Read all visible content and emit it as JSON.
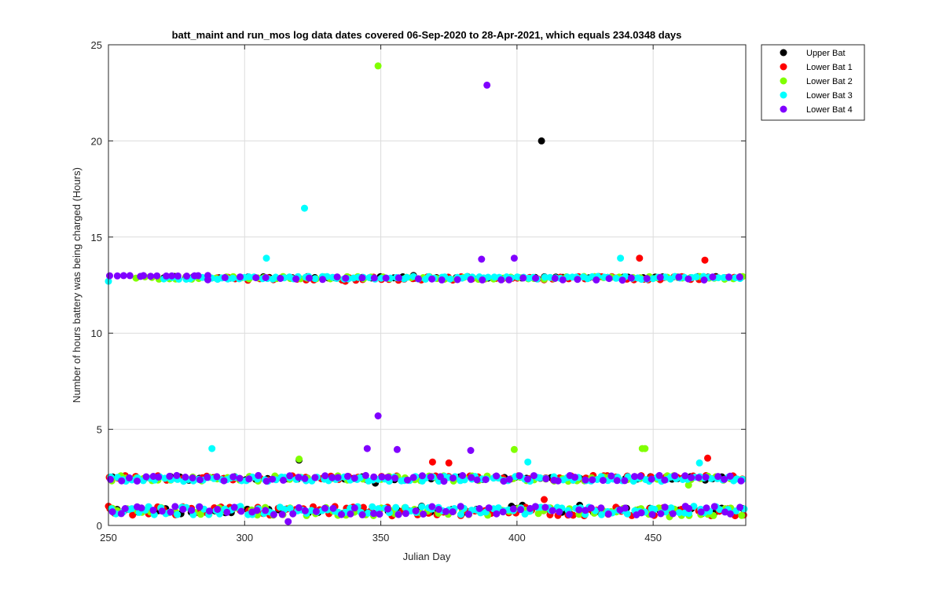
{
  "chart_data": {
    "type": "scatter",
    "title": "batt_maint and run_mos log data  dates covered 06-Sep-2020 to 28-Apr-2021, which equals 234.0348 days",
    "xlabel": "Julian Day",
    "ylabel": "Number of hours battery was being charged (Hours)",
    "xlim": [
      250,
      484
    ],
    "ylim": [
      0,
      25
    ],
    "xticks": [
      250,
      300,
      350,
      400,
      450
    ],
    "yticks": [
      0,
      5,
      10,
      15,
      20,
      25
    ],
    "xtick_labels": [
      "250",
      "300",
      "350",
      "400",
      "450"
    ],
    "ytick_labels": [
      "0",
      "5",
      "10",
      "15",
      "20",
      "25"
    ],
    "grid": true,
    "legend_position": "outside-top-right",
    "series": [
      {
        "name": "Upper Bat",
        "color": "#000000",
        "bands": [
          {
            "y_lo": 12.85,
            "y_hi": 12.95,
            "x_from": 270,
            "x_to": 484,
            "step": 4
          },
          {
            "y_lo": 2.35,
            "y_hi": 2.55,
            "x_from": 252,
            "x_to": 484,
            "step": 4
          },
          {
            "y_lo": 0.6,
            "y_hi": 0.9,
            "x_from": 252,
            "x_to": 484,
            "step": 4
          }
        ],
        "points": [
          {
            "x": 409,
            "y": 20.0
          },
          {
            "x": 320,
            "y": 3.4
          },
          {
            "x": 348,
            "y": 2.2
          },
          {
            "x": 362,
            "y": 13.0
          },
          {
            "x": 365,
            "y": 1.0
          },
          {
            "x": 398,
            "y": 1.0
          },
          {
            "x": 402,
            "y": 1.05
          },
          {
            "x": 423,
            "y": 1.05
          }
        ]
      },
      {
        "name": "Lower Bat 1",
        "color": "#ff0000",
        "bands": [
          {
            "y_lo": 12.75,
            "y_hi": 12.95,
            "x_from": 290,
            "x_to": 484,
            "step": 3
          },
          {
            "y_lo": 2.35,
            "y_hi": 2.6,
            "x_from": 251,
            "x_to": 484,
            "step": 3
          },
          {
            "y_lo": 0.5,
            "y_hi": 1.0,
            "x_from": 250,
            "x_to": 484,
            "step": 3
          }
        ],
        "points": [
          {
            "x": 445,
            "y": 13.9
          },
          {
            "x": 469,
            "y": 13.8
          },
          {
            "x": 337,
            "y": 12.7
          },
          {
            "x": 369,
            "y": 3.3
          },
          {
            "x": 375,
            "y": 3.25
          },
          {
            "x": 470,
            "y": 3.5
          },
          {
            "x": 410,
            "y": 1.35
          },
          {
            "x": 250,
            "y": 1.0
          }
        ]
      },
      {
        "name": "Lower Bat 2",
        "color": "#80ff00",
        "bands": [
          {
            "y_lo": 12.8,
            "y_hi": 12.95,
            "x_from": 260,
            "x_to": 484,
            "step": 3
          },
          {
            "y_lo": 2.3,
            "y_hi": 2.6,
            "x_from": 251,
            "x_to": 484,
            "step": 3
          },
          {
            "y_lo": 0.5,
            "y_hi": 0.95,
            "x_from": 251,
            "x_to": 484,
            "step": 3
          }
        ],
        "points": [
          {
            "x": 349,
            "y": 23.9
          },
          {
            "x": 320,
            "y": 3.45
          },
          {
            "x": 399,
            "y": 3.95
          },
          {
            "x": 446,
            "y": 4.0
          },
          {
            "x": 447,
            "y": 4.0
          },
          {
            "x": 463,
            "y": 2.1
          },
          {
            "x": 456,
            "y": 0.45
          }
        ]
      },
      {
        "name": "Lower Bat 3",
        "color": "#00ffff",
        "bands": [
          {
            "y_lo": 12.8,
            "y_hi": 12.95,
            "x_from": 270,
            "x_to": 484,
            "step": 2
          },
          {
            "y_lo": 2.3,
            "y_hi": 2.55,
            "x_from": 251,
            "x_to": 484,
            "step": 2
          },
          {
            "y_lo": 0.55,
            "y_hi": 1.0,
            "x_from": 251,
            "x_to": 484,
            "step": 2
          }
        ],
        "points": [
          {
            "x": 322,
            "y": 16.5
          },
          {
            "x": 308,
            "y": 13.9
          },
          {
            "x": 438,
            "y": 13.9
          },
          {
            "x": 250,
            "y": 12.7
          },
          {
            "x": 288,
            "y": 4.0
          },
          {
            "x": 404,
            "y": 3.3
          },
          {
            "x": 467,
            "y": 3.25
          }
        ]
      },
      {
        "name": "Lower Bat 4",
        "color": "#8000ff",
        "bands": [
          {
            "y_lo": 12.95,
            "y_hi": 13.0,
            "x_from": 251,
            "x_to": 288,
            "step": 2.5
          },
          {
            "y_lo": 12.75,
            "y_hi": 12.95,
            "x_from": 288,
            "x_to": 484,
            "step": 5
          },
          {
            "y_lo": 2.3,
            "y_hi": 2.6,
            "x_from": 251,
            "x_to": 484,
            "step": 3
          },
          {
            "y_lo": 0.55,
            "y_hi": 1.0,
            "x_from": 251,
            "x_to": 484,
            "step": 3
          }
        ],
        "points": [
          {
            "x": 389,
            "y": 22.9
          },
          {
            "x": 387,
            "y": 13.85
          },
          {
            "x": 399,
            "y": 13.9
          },
          {
            "x": 349,
            "y": 5.7
          },
          {
            "x": 345,
            "y": 4.0
          },
          {
            "x": 356,
            "y": 3.95
          },
          {
            "x": 383,
            "y": 3.9
          },
          {
            "x": 316,
            "y": 0.2
          }
        ]
      }
    ]
  }
}
